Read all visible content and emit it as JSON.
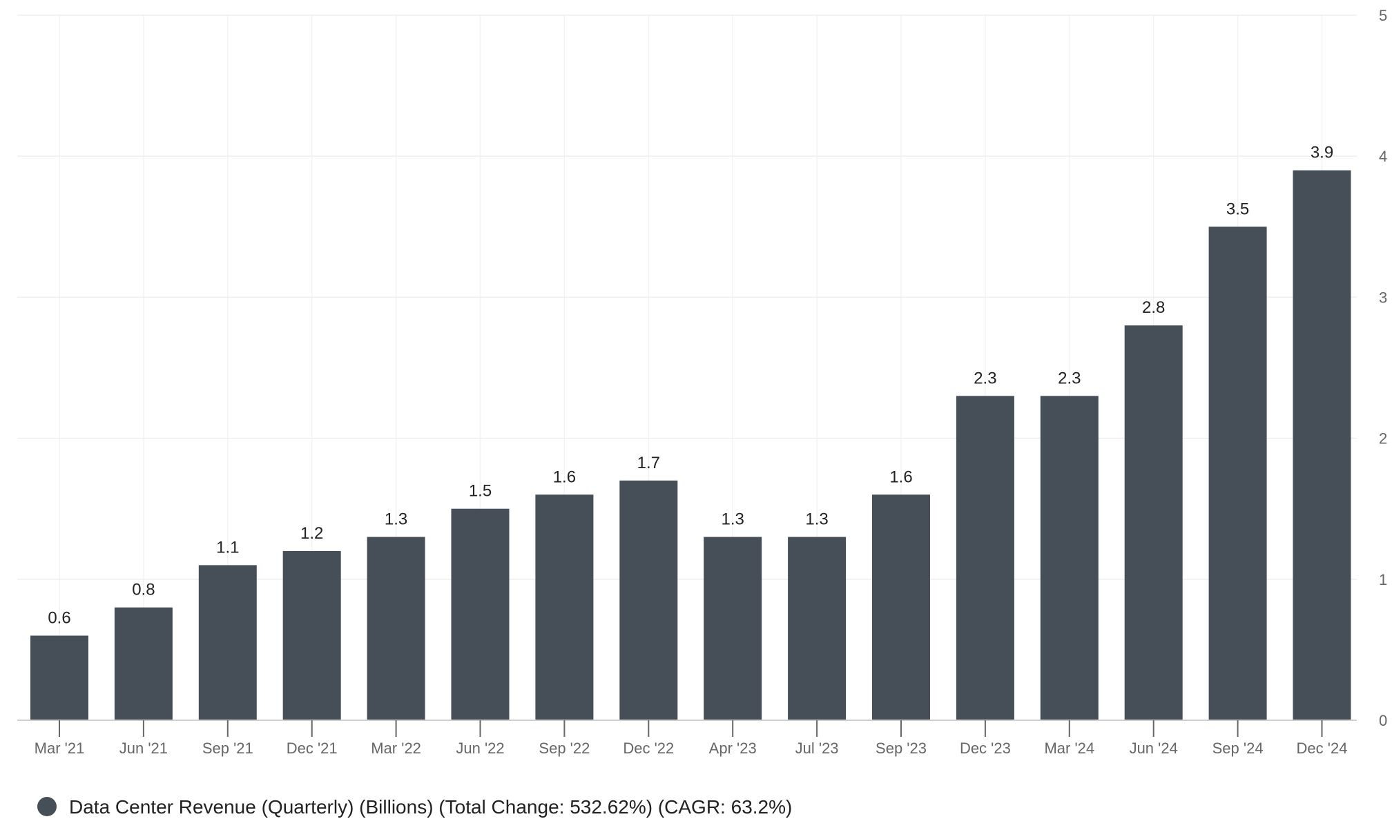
{
  "chart_data": {
    "type": "bar",
    "categories": [
      "Mar '21",
      "Jun '21",
      "Sep '21",
      "Dec '21",
      "Mar '22",
      "Jun '22",
      "Sep '22",
      "Dec '22",
      "Apr '23",
      "Jul '23",
      "Sep '23",
      "Dec '23",
      "Mar '24",
      "Jun '24",
      "Sep '24",
      "Dec '24"
    ],
    "series": [
      {
        "name": "Data Center Revenue (Quarterly) (Billions) (Total Change: 532.62%) (CAGR: 63.2%)",
        "values": [
          0.6,
          0.8,
          1.1,
          1.2,
          1.3,
          1.5,
          1.6,
          1.7,
          1.3,
          1.3,
          1.6,
          2.3,
          2.3,
          2.8,
          3.5,
          3.9
        ],
        "labels": [
          "0.6",
          "0.8",
          "1.1",
          "1.2",
          "1.3",
          "1.5",
          "1.6",
          "1.7",
          "1.3",
          "1.3",
          "1.6",
          "2.3",
          "2.3",
          "2.8",
          "3.5",
          "3.9"
        ],
        "color": "#464f57"
      }
    ],
    "ylim": [
      0,
      5
    ],
    "yticks": [
      "0",
      "1",
      "2",
      "3",
      "4",
      "5"
    ],
    "xlabel": "",
    "ylabel": "",
    "grid": true,
    "y_axis_side": "right",
    "legend_position": "bottom-left"
  }
}
